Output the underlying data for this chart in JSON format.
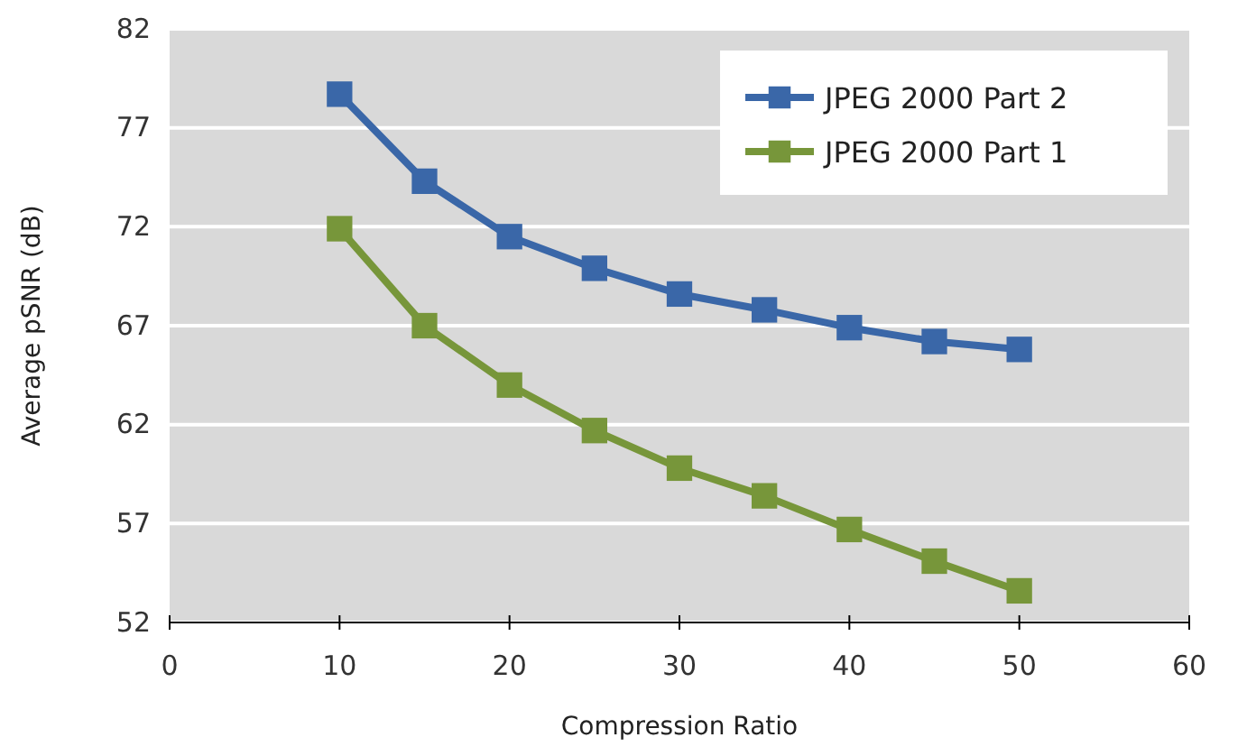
{
  "chart_data": {
    "type": "line",
    "xlabel": "Compression Ratio",
    "ylabel": "Average pSNR (dB)",
    "x": [
      10,
      15,
      20,
      25,
      30,
      35,
      40,
      45,
      50
    ],
    "series": [
      {
        "name": "JPEG 2000 Part 2",
        "color": "#3a67a8",
        "values": [
          78.7,
          74.3,
          71.5,
          69.9,
          68.6,
          67.8,
          66.9,
          66.2,
          65.8
        ]
      },
      {
        "name": "JPEG 2000 Part 1",
        "color": "#77963a",
        "values": [
          71.9,
          67.0,
          64.0,
          61.7,
          59.8,
          58.4,
          56.7,
          55.1,
          53.6
        ]
      }
    ],
    "xlim": [
      0,
      60
    ],
    "xticks": [
      0,
      10,
      20,
      30,
      40,
      50,
      60
    ],
    "ylim": [
      52,
      82
    ],
    "yticks": [
      52,
      57,
      62,
      67,
      72,
      77,
      82
    ],
    "grid": "y",
    "legend": "top right",
    "marker": "square",
    "line_style": "solid"
  }
}
